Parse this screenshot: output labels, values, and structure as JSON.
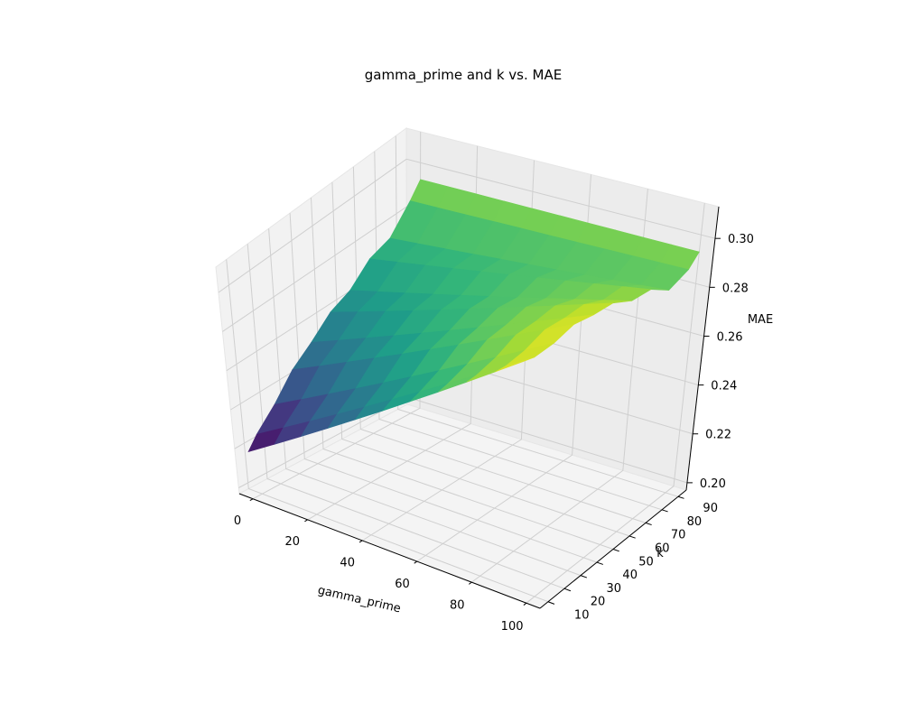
{
  "chart_data": {
    "type": "surface",
    "title": "gamma_prime and k vs. MAE",
    "xlabel": "gamma_prime",
    "ylabel": "k",
    "zlabel": "MAE",
    "colormap": "viridis",
    "x_ticks": [
      0,
      20,
      40,
      60,
      80,
      100
    ],
    "y_ticks": [
      10,
      20,
      30,
      40,
      50,
      60,
      70,
      80,
      90
    ],
    "z_ticks": [
      0.2,
      0.22,
      0.24,
      0.26,
      0.28,
      0.3
    ],
    "xlim": [
      -5,
      105
    ],
    "ylim": [
      5,
      95
    ],
    "zlim": [
      0.197,
      0.313
    ],
    "x": [
      0,
      10,
      20,
      30,
      40,
      50,
      60,
      70,
      80,
      90,
      100
    ],
    "y": [
      5,
      10,
      20,
      30,
      40,
      50,
      60,
      70,
      80,
      90,
      95
    ],
    "mae_at_gamma0_by_k": [
      0.221,
      0.227,
      0.236,
      0.247,
      0.254,
      0.262,
      0.266,
      0.274,
      0.277,
      0.287,
      0.293
    ],
    "mae_slope_by_k": [
      0.00088,
      0.0008,
      0.0007,
      0.0006,
      0.0005,
      0.0004,
      0.0003,
      0.0002,
      0.0001,
      2e-05,
      0.0
    ],
    "mae_at_gamma100_k5": 0.309,
    "mae_at_gamma100_k95": 0.293,
    "grid": true
  }
}
